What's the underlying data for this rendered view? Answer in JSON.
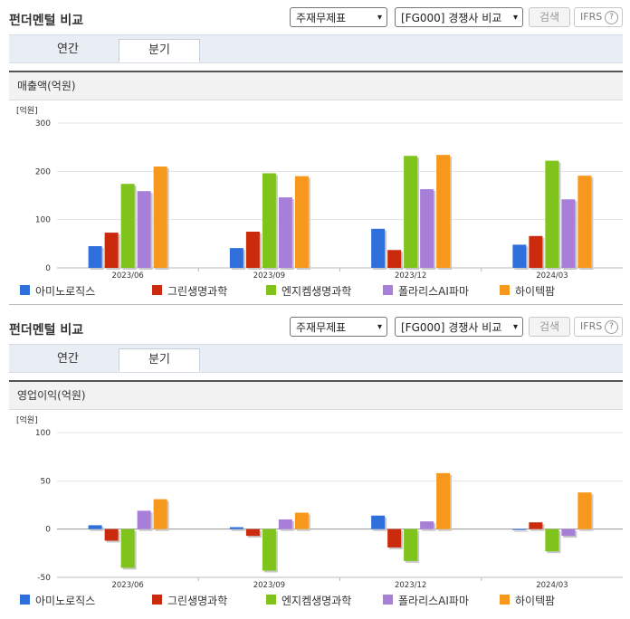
{
  "panels": [
    {
      "title": "펀더멘털 비교",
      "select_statement": "주재무제표",
      "select_compare": "[FG000] 경쟁사 비교",
      "search_label": "검색",
      "ifrs_label": "IFRS",
      "ifrs_help": "?",
      "tabs": [
        "연간",
        "분기"
      ],
      "active_tab": 1,
      "chart_title": "매출액(억원)"
    },
    {
      "title": "펀더멘털 비교",
      "select_statement": "주재무제표",
      "select_compare": "[FG000] 경쟁사 비교",
      "search_label": "검색",
      "ifrs_label": "IFRS",
      "ifrs_help": "?",
      "tabs": [
        "연간",
        "분기"
      ],
      "active_tab": 1,
      "chart_title": "영업이익(억원)"
    }
  ],
  "legend": [
    "아미노로직스",
    "그린생명과학",
    "엔지켐생명과학",
    "폴라리스AI파마",
    "하이텍팜"
  ],
  "colors": [
    "#2e6fdc",
    "#cc2a0c",
    "#7fc31c",
    "#a77ed8",
    "#f7981c"
  ],
  "chart_data": [
    {
      "type": "bar",
      "title": "매출액(억원)",
      "unit_label": "[억원]",
      "categories": [
        "2023/06",
        "2023/09",
        "2023/12",
        "2024/03"
      ],
      "ylim": [
        0,
        300
      ],
      "yticks": [
        0,
        100,
        200,
        300
      ],
      "series": [
        {
          "name": "아미노로직스",
          "values": [
            45,
            41,
            81,
            48
          ]
        },
        {
          "name": "그린생명과학",
          "values": [
            73,
            75,
            37,
            66
          ]
        },
        {
          "name": "엔지켐생명과학",
          "values": [
            174,
            196,
            232,
            222
          ]
        },
        {
          "name": "폴라리스AI파마",
          "values": [
            159,
            146,
            163,
            142
          ]
        },
        {
          "name": "하이텍팜",
          "values": [
            210,
            190,
            234,
            191
          ]
        }
      ]
    },
    {
      "type": "bar",
      "title": "영업이익(억원)",
      "unit_label": "[억원]",
      "categories": [
        "2023/06",
        "2023/09",
        "2023/12",
        "2024/03"
      ],
      "ylim": [
        -50,
        100
      ],
      "yticks": [
        -50,
        0,
        50,
        100
      ],
      "series": [
        {
          "name": "아미노로직스",
          "values": [
            4,
            2,
            14,
            -1
          ]
        },
        {
          "name": "그린생명과학",
          "values": [
            -12,
            -7,
            -19,
            7
          ]
        },
        {
          "name": "엔지켐생명과학",
          "values": [
            -40,
            -43,
            -33,
            -23
          ]
        },
        {
          "name": "폴라리스AI파마",
          "values": [
            19,
            10,
            8,
            -7
          ]
        },
        {
          "name": "하이텍팜",
          "values": [
            31,
            17,
            58,
            38
          ]
        }
      ]
    }
  ]
}
